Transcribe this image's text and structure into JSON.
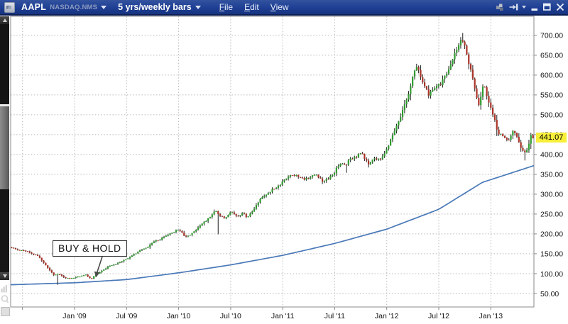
{
  "window": {
    "toolbar": {
      "symbol": "AAPL",
      "exchange": "NASDAQ.NMS",
      "period_selector": "5 yrs/weekly bars",
      "menus": [
        {
          "label": "File"
        },
        {
          "label": "Edit"
        },
        {
          "label": "View"
        }
      ],
      "colors": {
        "bar_bg": "#1e3f94",
        "bar_border": "#0c1f55",
        "text": "#ffffff",
        "muted": "#8d9bc0"
      }
    },
    "controls": {
      "items": [
        "workspace-icon",
        "pin-icon",
        "pin-caret",
        "minimize-button",
        "maximize-button",
        "close-button"
      ]
    }
  },
  "annotation": {
    "label": "BUY & HOLD"
  },
  "quote": {
    "last": "441.07",
    "tag_color": "#f7ef3a"
  },
  "chart_data": {
    "type": "candlestick",
    "symbol": "AAPL",
    "interval": "weekly",
    "range": "5 yrs",
    "title": "",
    "ylim": [
      16,
      748
    ],
    "yticks": [
      50,
      100,
      150,
      200,
      250,
      300,
      350,
      400,
      450,
      500,
      550,
      600,
      650,
      700
    ],
    "x_domain": [
      2008.386,
      2013.414
    ],
    "xticks": [
      {
        "t": 2008.5,
        "label": ""
      },
      {
        "t": 2009.0,
        "label": "Jan '09"
      },
      {
        "t": 2009.5,
        "label": "Jul '09"
      },
      {
        "t": 2010.0,
        "label": "Jan '10"
      },
      {
        "t": 2010.5,
        "label": "Jul '10"
      },
      {
        "t": 2011.0,
        "label": "Jan '11"
      },
      {
        "t": 2011.5,
        "label": "Jul '11"
      },
      {
        "t": 2012.0,
        "label": "Jan '12"
      },
      {
        "t": 2012.5,
        "label": "Jul '12"
      },
      {
        "t": 2013.0,
        "label": "Jan '13"
      }
    ],
    "candles": 261,
    "seed": 11,
    "last_close": 441.07,
    "price_anchors": [
      [
        2008.386,
        166
      ],
      [
        2008.45,
        160
      ],
      [
        2008.52,
        158
      ],
      [
        2008.6,
        150
      ],
      [
        2008.65,
        145
      ],
      [
        2008.7,
        128
      ],
      [
        2008.76,
        108
      ],
      [
        2008.8,
        97
      ],
      [
        2008.85,
        99
      ],
      [
        2008.9,
        90
      ],
      [
        2008.95,
        88
      ],
      [
        2009.0,
        90
      ],
      [
        2009.06,
        94
      ],
      [
        2009.11,
        97
      ],
      [
        2009.16,
        86
      ],
      [
        2009.21,
        99
      ],
      [
        2009.27,
        108
      ],
      [
        2009.33,
        119
      ],
      [
        2009.4,
        124
      ],
      [
        2009.46,
        133
      ],
      [
        2009.52,
        140
      ],
      [
        2009.58,
        150
      ],
      [
        2009.64,
        160
      ],
      [
        2009.7,
        166
      ],
      [
        2009.76,
        182
      ],
      [
        2009.82,
        186
      ],
      [
        2009.88,
        196
      ],
      [
        2009.94,
        204
      ],
      [
        2010.0,
        211
      ],
      [
        2010.06,
        194
      ],
      [
        2010.12,
        200
      ],
      [
        2010.18,
        215
      ],
      [
        2010.24,
        228
      ],
      [
        2010.3,
        242
      ],
      [
        2010.35,
        261
      ],
      [
        2010.4,
        246
      ],
      [
        2010.44,
        238
      ],
      [
        2010.5,
        256
      ],
      [
        2010.56,
        246
      ],
      [
        2010.62,
        252
      ],
      [
        2010.66,
        240
      ],
      [
        2010.72,
        260
      ],
      [
        2010.78,
        288
      ],
      [
        2010.84,
        300
      ],
      [
        2010.9,
        312
      ],
      [
        2010.96,
        320
      ],
      [
        2011.02,
        338
      ],
      [
        2011.08,
        350
      ],
      [
        2011.14,
        346
      ],
      [
        2011.2,
        338
      ],
      [
        2011.26,
        343
      ],
      [
        2011.32,
        350
      ],
      [
        2011.38,
        334
      ],
      [
        2011.44,
        338
      ],
      [
        2011.5,
        356
      ],
      [
        2011.55,
        380
      ],
      [
        2011.6,
        372
      ],
      [
        2011.65,
        388
      ],
      [
        2011.7,
        394
      ],
      [
        2011.76,
        404
      ],
      [
        2011.82,
        376
      ],
      [
        2011.88,
        390
      ],
      [
        2011.94,
        386
      ],
      [
        2012.0,
        412
      ],
      [
        2012.05,
        448
      ],
      [
        2012.1,
        478
      ],
      [
        2012.15,
        508
      ],
      [
        2012.2,
        546
      ],
      [
        2012.25,
        598
      ],
      [
        2012.3,
        624
      ],
      [
        2012.35,
        576
      ],
      [
        2012.4,
        552
      ],
      [
        2012.46,
        568
      ],
      [
        2012.52,
        578
      ],
      [
        2012.58,
        606
      ],
      [
        2012.64,
        648
      ],
      [
        2012.69,
        672
      ],
      [
        2012.72,
        695
      ],
      [
        2012.76,
        662
      ],
      [
        2012.8,
        618
      ],
      [
        2012.84,
        576
      ],
      [
        2012.88,
        516
      ],
      [
        2012.93,
        582
      ],
      [
        2012.98,
        528
      ],
      [
        2013.03,
        498
      ],
      [
        2013.07,
        452
      ],
      [
        2013.12,
        448
      ],
      [
        2013.17,
        437
      ],
      [
        2013.22,
        460
      ],
      [
        2013.27,
        430
      ],
      [
        2013.32,
        400
      ],
      [
        2013.36,
        418
      ],
      [
        2013.39,
        452
      ],
      [
        2013.414,
        441.07
      ]
    ],
    "spikes": [
      {
        "t": 2008.82,
        "low": 72
      },
      {
        "t": 2010.37,
        "low": 199
      },
      {
        "t": 2011.6,
        "low": 354
      },
      {
        "t": 2012.72,
        "high": 706
      },
      {
        "t": 2013.32,
        "low": 385
      }
    ],
    "ma": {
      "name": "long-term moving average",
      "color": "#4a79b8",
      "anchors": [
        [
          2008.386,
          72
        ],
        [
          2009.0,
          77
        ],
        [
          2009.5,
          85
        ],
        [
          2010.0,
          102
        ],
        [
          2010.5,
          122
        ],
        [
          2011.0,
          146
        ],
        [
          2011.5,
          176
        ],
        [
          2012.0,
          212
        ],
        [
          2012.5,
          262
        ],
        [
          2012.92,
          330
        ],
        [
          2013.414,
          372
        ]
      ]
    },
    "colors": {
      "up": "#2f9b2f",
      "down": "#a93226",
      "wick": "#1c1c1c",
      "grid": "#b8b8b8",
      "axis": "#8a8a8a",
      "label": "#151515",
      "bg": "#ffffff"
    }
  }
}
